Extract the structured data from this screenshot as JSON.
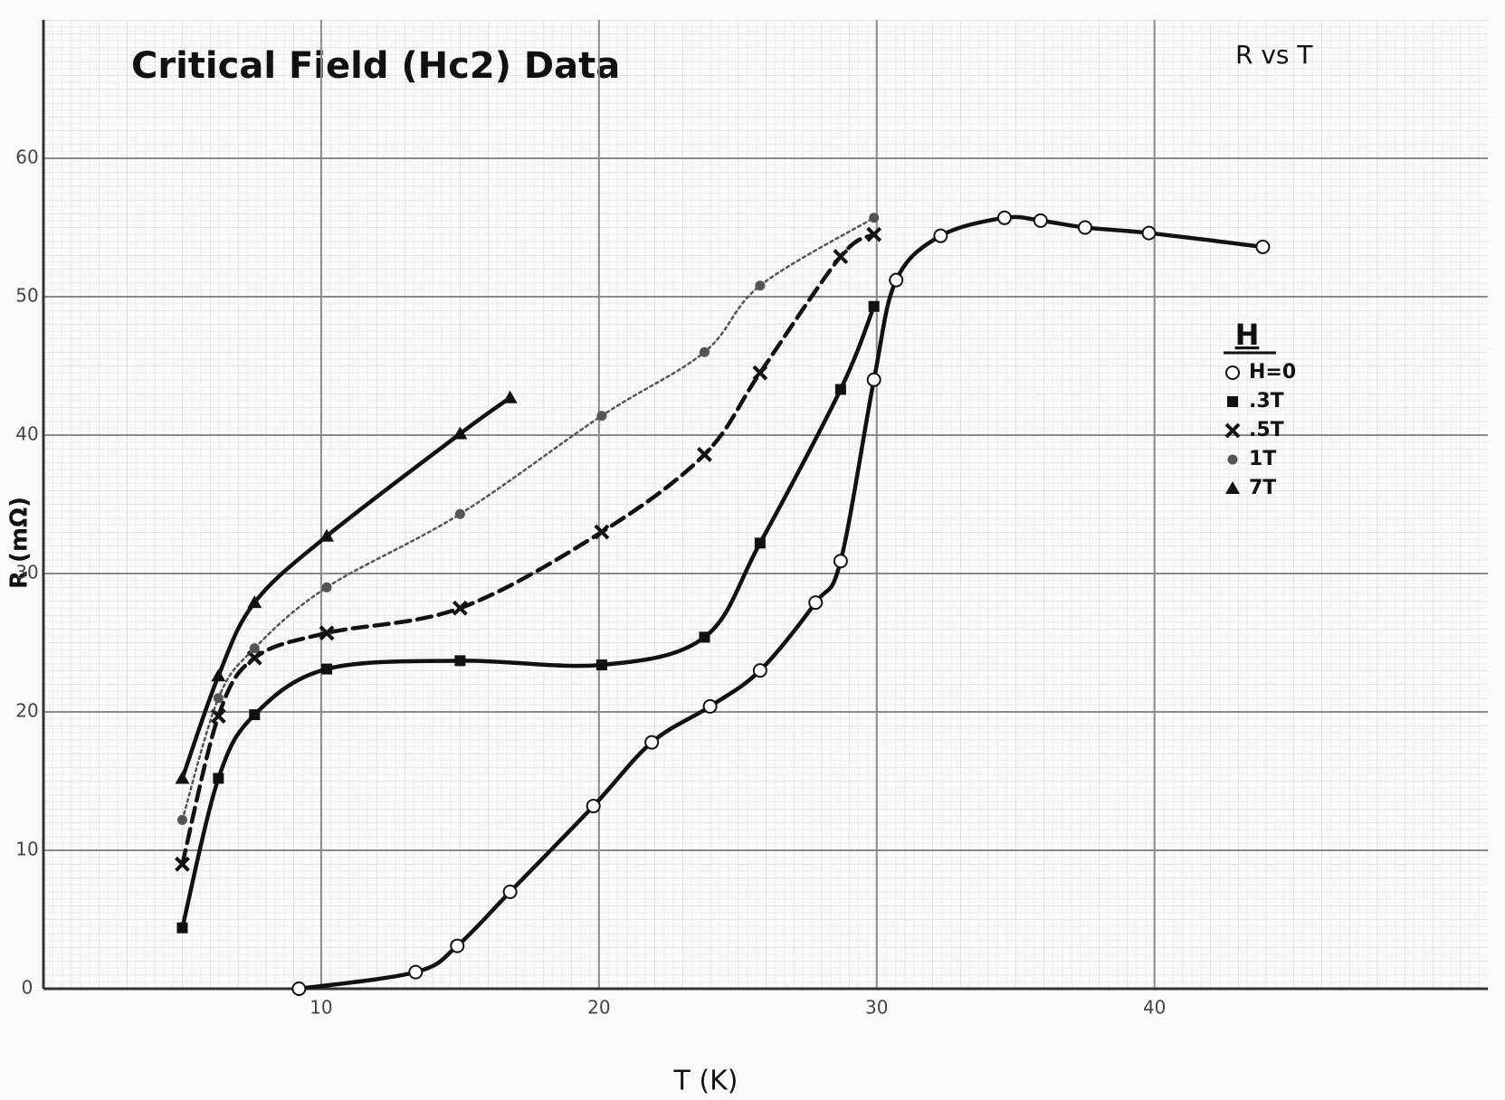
{
  "chart_data": {
    "type": "line",
    "title": "Critical Field (Hc2) Data",
    "subtitle": "R vs T",
    "x_label": "T (K)",
    "y_label": "R (mΩ)",
    "legend_title": "H",
    "xlim": [
      0,
      52
    ],
    "ylim": [
      0,
      70
    ],
    "xticks": [
      10,
      20,
      30,
      40
    ],
    "yticks": [
      0,
      10,
      20,
      30,
      40,
      50,
      60
    ],
    "grid": true,
    "series": [
      {
        "name": "H=0",
        "color": "#111111",
        "marker": "open-circle",
        "dash": "solid",
        "x": [
          9.2,
          13.4,
          14.9,
          16.8,
          19.8,
          21.9,
          24.0,
          25.8,
          27.8,
          28.7,
          29.9,
          30.7,
          32.3,
          34.6,
          35.9,
          37.5,
          39.8,
          43.9
        ],
        "values": [
          0,
          1.2,
          3.1,
          7.0,
          13.2,
          17.8,
          20.4,
          23.0,
          27.9,
          30.9,
          44.0,
          51.2,
          54.4,
          55.7,
          55.5,
          55.0,
          54.6,
          53.6
        ]
      },
      {
        "name": ".3T",
        "color": "#111111",
        "marker": "square",
        "dash": "solid",
        "x": [
          5.0,
          6.3,
          7.6,
          10.2,
          15.0,
          20.1,
          23.8,
          25.8,
          28.7,
          29.9
        ],
        "values": [
          4.4,
          15.2,
          19.8,
          23.1,
          23.7,
          23.4,
          25.4,
          32.2,
          43.3,
          49.3
        ]
      },
      {
        "name": ".5T",
        "color": "#111111",
        "marker": "cross",
        "dash": "dashed",
        "x": [
          5.0,
          6.3,
          7.6,
          10.2,
          15.0,
          20.1,
          23.8,
          25.8,
          28.7,
          29.9
        ],
        "values": [
          9.0,
          19.7,
          23.9,
          25.7,
          27.5,
          33.0,
          38.6,
          44.5,
          52.9,
          54.5
        ]
      },
      {
        "name": "1T",
        "color": "#555555",
        "marker": "dot",
        "dash": "dotted",
        "x": [
          5.0,
          6.3,
          7.6,
          10.2,
          15.0,
          20.1,
          23.8,
          25.8,
          29.9
        ],
        "values": [
          12.2,
          21.0,
          24.6,
          29.0,
          34.3,
          41.4,
          46.0,
          50.8,
          55.7
        ]
      },
      {
        "name": "7T",
        "color": "#111111",
        "marker": "triangle",
        "dash": "solid",
        "x": [
          5.0,
          6.3,
          7.6,
          10.2,
          15.0,
          16.8
        ],
        "values": [
          15.2,
          22.6,
          27.9,
          32.7,
          40.1,
          42.7
        ]
      }
    ]
  }
}
